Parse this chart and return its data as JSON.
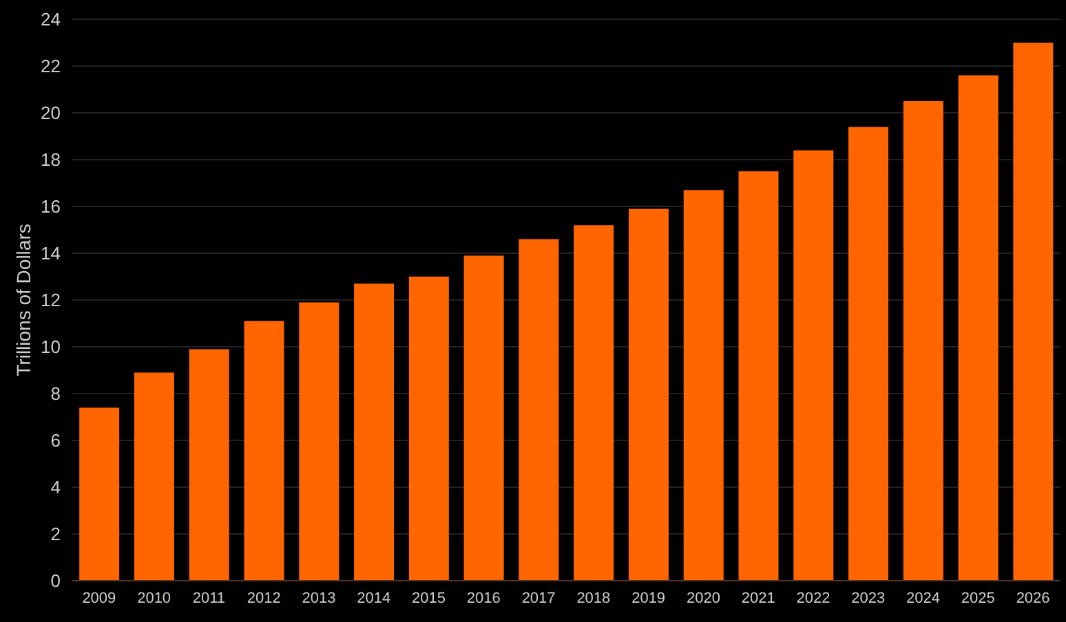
{
  "chart_data": {
    "type": "bar",
    "ylabel": "Trillions of Dollars",
    "categories": [
      "2009",
      "2010",
      "2011",
      "2012",
      "2013",
      "2014",
      "2015",
      "2016",
      "2017",
      "2018",
      "2019",
      "2020",
      "2021",
      "2022",
      "2023",
      "2024",
      "2025",
      "2026"
    ],
    "values": [
      7.4,
      8.9,
      9.9,
      11.1,
      11.9,
      12.7,
      13.0,
      13.9,
      14.6,
      15.2,
      15.9,
      16.7,
      17.5,
      18.4,
      19.4,
      20.5,
      21.6,
      23.0
    ],
    "color": "#ff6600",
    "ylim": [
      0,
      24
    ],
    "yticks": [
      0,
      2,
      4,
      6,
      8,
      10,
      12,
      14,
      16,
      18,
      20,
      22,
      24
    ],
    "grid": "y"
  }
}
